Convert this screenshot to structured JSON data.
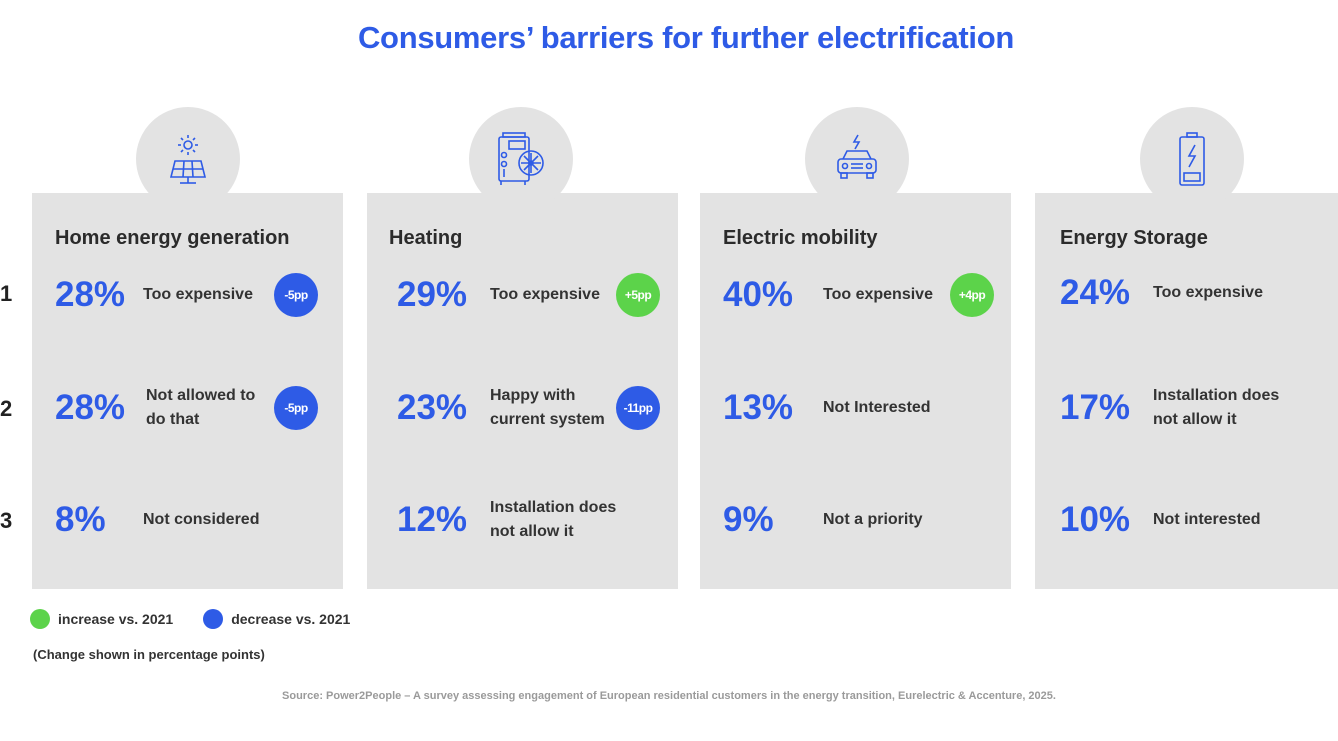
{
  "title": "Consumers’ barriers for further electrification",
  "ranks": [
    "1",
    "2",
    "3"
  ],
  "colors": {
    "accent": "#2e5be6",
    "increase": "#5cd34a",
    "decrease": "#2e5be6",
    "card": "#e3e3e3",
    "source": "#9a9a9a"
  },
  "chart_data": {
    "type": "table",
    "categories": [
      {
        "name": "Home energy generation",
        "icon": "solar-panel-icon",
        "rows": [
          {
            "rank": 1,
            "value": "28%",
            "label": "Too expensive",
            "change": "-5pp",
            "direction": "decrease"
          },
          {
            "rank": 2,
            "value": "28%",
            "label": "Not allowed to do that",
            "change": "-5pp",
            "direction": "decrease"
          },
          {
            "rank": 3,
            "value": "8%",
            "label": "Not considered",
            "change": null,
            "direction": null
          }
        ]
      },
      {
        "name": "Heating",
        "icon": "heat-pump-icon",
        "rows": [
          {
            "rank": 1,
            "value": "29%",
            "label": "Too expensive",
            "change": "+5pp",
            "direction": "increase"
          },
          {
            "rank": 2,
            "value": "23%",
            "label": "Happy with current system",
            "change": "-11pp",
            "direction": "decrease"
          },
          {
            "rank": 3,
            "value": "12%",
            "label": "Installation does not allow it",
            "change": null,
            "direction": null
          }
        ]
      },
      {
        "name": "Electric mobility",
        "icon": "electric-car-icon",
        "rows": [
          {
            "rank": 1,
            "value": "40%",
            "label": "Too expensive",
            "change": "+4pp",
            "direction": "increase"
          },
          {
            "rank": 2,
            "value": "13%",
            "label": "Not Interested",
            "change": null,
            "direction": null
          },
          {
            "rank": 3,
            "value": "9%",
            "label": "Not a priority",
            "change": null,
            "direction": null
          }
        ]
      },
      {
        "name": "Energy Storage",
        "icon": "battery-icon",
        "rows": [
          {
            "rank": 1,
            "value": "24%",
            "label": "Too expensive",
            "change": null,
            "direction": null
          },
          {
            "rank": 2,
            "value": "17%",
            "label": "Installation does not allow it",
            "change": null,
            "direction": null
          },
          {
            "rank": 3,
            "value": "10%",
            "label": "Not interested",
            "change": null,
            "direction": null
          }
        ]
      }
    ]
  },
  "legend": {
    "increase": "increase vs. 2021",
    "decrease": "decrease vs. 2021"
  },
  "note": "(Change shown in percentage points)",
  "source": "Source: Power2People – A survey assessing engagement of European residential customers in the energy transition, Eurelectric & Accenture, 2025."
}
